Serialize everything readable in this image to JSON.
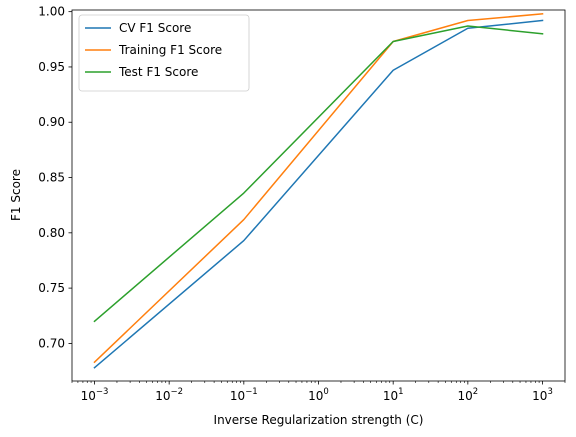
{
  "chart_data": {
    "type": "line",
    "title": "",
    "xlabel": "Inverse Regularization strength (C)",
    "ylabel": "F1 Score",
    "xscale": "log",
    "x": [
      0.001,
      0.1,
      10,
      100,
      1000
    ],
    "xlim": [
      0.0005,
      2000
    ],
    "ylim": [
      0.666,
      1.0015
    ],
    "x_ticks": [
      {
        "value": 0.001,
        "base": "10",
        "exp": "−3"
      },
      {
        "value": 0.01,
        "base": "10",
        "exp": "−2"
      },
      {
        "value": 0.1,
        "base": "10",
        "exp": "−1"
      },
      {
        "value": 1,
        "base": "10",
        "exp": "0"
      },
      {
        "value": 10,
        "base": "10",
        "exp": "1"
      },
      {
        "value": 100,
        "base": "10",
        "exp": "2"
      },
      {
        "value": 1000,
        "base": "10",
        "exp": "3"
      }
    ],
    "y_ticks": [
      {
        "value": 0.7,
        "label": "0.70"
      },
      {
        "value": 0.75,
        "label": "0.75"
      },
      {
        "value": 0.8,
        "label": "0.80"
      },
      {
        "value": 0.85,
        "label": "0.85"
      },
      {
        "value": 0.9,
        "label": "0.90"
      },
      {
        "value": 0.95,
        "label": "0.95"
      },
      {
        "value": 1.0,
        "label": "1.00"
      }
    ],
    "grid": false,
    "legend_position": "top-left",
    "series": [
      {
        "name": "CV F1 Score",
        "color": "#1f77b4",
        "values": [
          0.678,
          0.793,
          0.947,
          0.985,
          0.992
        ]
      },
      {
        "name": "Training F1 Score",
        "color": "#ff7f0e",
        "values": [
          0.683,
          0.812,
          0.973,
          0.992,
          0.998
        ]
      },
      {
        "name": "Test F1 Score",
        "color": "#2ca02c",
        "values": [
          0.72,
          0.836,
          0.973,
          0.987,
          0.98
        ]
      }
    ]
  }
}
